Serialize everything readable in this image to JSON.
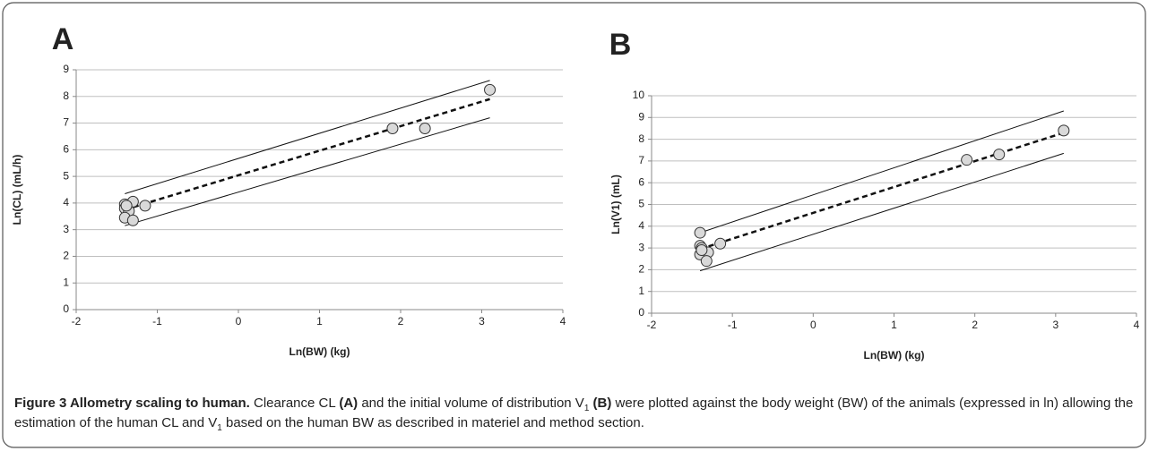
{
  "chart_data": [
    {
      "type": "scatter",
      "panel_label": "A",
      "x_label": "Ln(BW) (kg)",
      "y_label": "Ln(CL) (mL/h)",
      "x": [
        -1.4,
        -1.3,
        -1.4,
        -1.35,
        -1.4,
        -1.3,
        -1.38,
        -1.15,
        1.9,
        2.3,
        3.1
      ],
      "y": [
        3.95,
        4.05,
        3.8,
        3.7,
        3.45,
        3.35,
        3.9,
        3.9,
        6.8,
        6.8,
        8.25
      ],
      "color": "#d9d9d9",
      "lines": [
        {
          "dashed": true,
          "x": [
            -1.4,
            3.1
          ],
          "y": [
            3.75,
            7.9
          ]
        },
        {
          "dashed": false,
          "x": [
            -1.4,
            3.1
          ],
          "y": [
            4.35,
            8.6
          ]
        },
        {
          "dashed": false,
          "x": [
            -1.4,
            3.1
          ],
          "y": [
            3.15,
            7.2
          ]
        }
      ],
      "xlim": [
        -2,
        4
      ],
      "xticks": [
        -2,
        -1,
        0,
        1,
        2,
        3,
        4
      ],
      "ylim": [
        0,
        9
      ],
      "yticks": [
        0,
        1,
        2,
        3,
        4,
        5,
        6,
        7,
        8,
        9
      ],
      "grid": true
    },
    {
      "type": "scatter",
      "panel_label": "B",
      "x_label": "Ln(BW) (kg)",
      "y_label": "Ln(V1) (mL)",
      "x": [
        -1.4,
        -1.4,
        -1.38,
        -1.4,
        -1.3,
        -1.32,
        -1.38,
        -1.15,
        1.9,
        2.3,
        3.1
      ],
      "y": [
        3.7,
        3.1,
        3.0,
        2.7,
        2.8,
        2.4,
        2.9,
        3.2,
        7.05,
        7.3,
        8.4
      ],
      "color": "#d9d9d9",
      "lines": [
        {
          "dashed": true,
          "x": [
            -1.4,
            3.1
          ],
          "y": [
            2.95,
            8.3
          ]
        },
        {
          "dashed": false,
          "x": [
            -1.4,
            3.1
          ],
          "y": [
            3.7,
            9.3
          ]
        },
        {
          "dashed": false,
          "x": [
            -1.4,
            3.1
          ],
          "y": [
            1.95,
            7.35
          ]
        }
      ],
      "xlim": [
        -2,
        4
      ],
      "xticks": [
        -2,
        -1,
        0,
        1,
        2,
        3,
        4
      ],
      "ylim": [
        0,
        10
      ],
      "yticks": [
        0,
        1,
        2,
        3,
        4,
        5,
        6,
        7,
        8,
        9,
        10
      ],
      "grid": true
    }
  ],
  "caption": {
    "parts": [
      {
        "text": "Figure 3 Allometry scaling to human.",
        "bold": true
      },
      {
        "text": " Clearance CL "
      },
      {
        "text": "(A)",
        "bold": true
      },
      {
        "text": " and the initial volume of distribution V"
      },
      {
        "text": "1",
        "sub": true
      },
      {
        "text": " "
      },
      {
        "text": "(B)",
        "bold": true
      },
      {
        "text": " were plotted against the body weight (BW) of the animals (expressed in ln) allowing the estimation of the human CL and V"
      },
      {
        "text": "1",
        "sub": true
      },
      {
        "text": " based on the human BW as described in materiel and method section."
      }
    ]
  }
}
